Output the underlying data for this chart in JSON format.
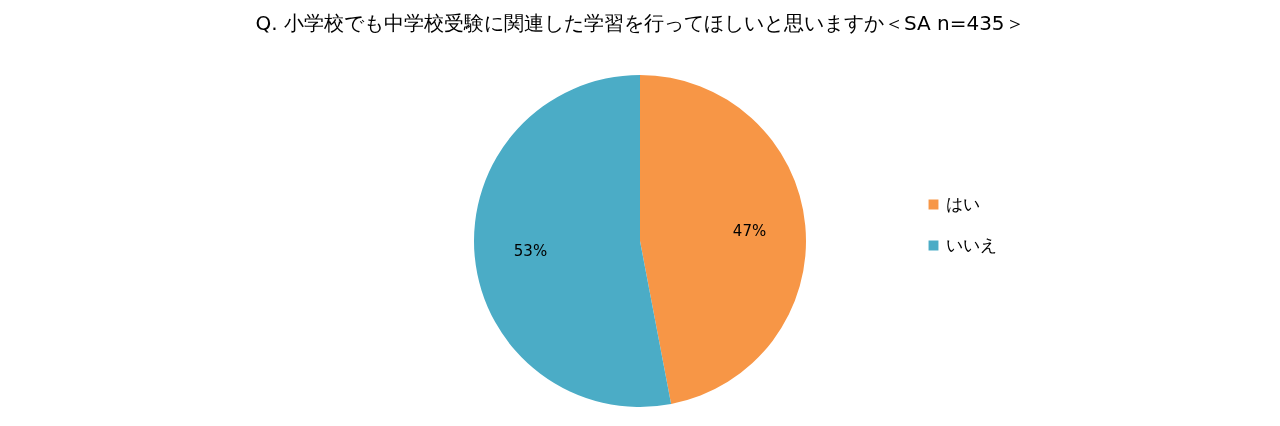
{
  "chart_data": {
    "type": "pie",
    "title": "Q. 小学校でも中学校受験に関連した学習を行ってほしいと思いますか＜SA n=435＞",
    "categories": [
      "はい",
      "いいえ"
    ],
    "values": [
      47,
      53
    ],
    "colors": [
      "#f79646",
      "#4bacc6"
    ],
    "value_labels": [
      "47%",
      "53%"
    ],
    "legend": "right"
  }
}
